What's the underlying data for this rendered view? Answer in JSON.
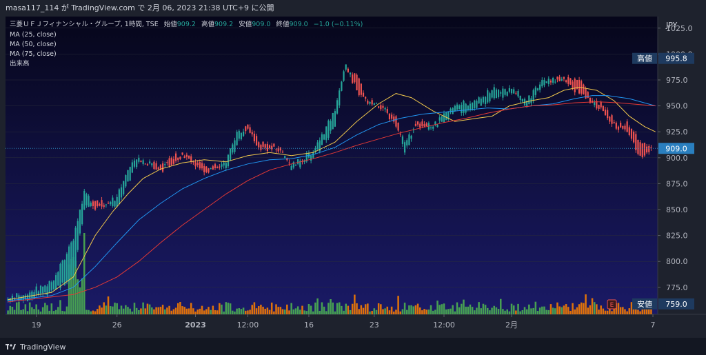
{
  "header": {
    "caption": "masa117_114 が TradingView.com で 2月 06, 2023 21:38 UTC+9 に公開"
  },
  "legend": {
    "symbol": "三菱ＵＦＪフィナンシャル・グループ, 1時間, TSE",
    "open_label": "始値",
    "open_value": "909.2",
    "high_label": "高値",
    "high_value": "909.2",
    "low_label": "安値",
    "low_value": "909.0",
    "close_label": "終値",
    "close_value": "909.0",
    "change": "−1.0 (−0.11%)",
    "indicators": [
      "MA (25, close)",
      "MA (50, close)",
      "MA (75, close)",
      "出来高"
    ]
  },
  "price_axis": {
    "currency": "JPY",
    "ticks": [
      "1025.0",
      "1000.0",
      "975.0",
      "950.0",
      "925.0",
      "900.0",
      "875.0",
      "850.0",
      "825.0",
      "800.0",
      "775.0"
    ],
    "high_tag": {
      "label": "高値",
      "value": "995.8"
    },
    "last_tag": {
      "value": "909.0"
    },
    "low_tag": {
      "label": "安値",
      "value": "759.0"
    }
  },
  "time_axis": {
    "labels": [
      "19",
      "26",
      "2023",
      "12:00",
      "16",
      "23",
      "12:00",
      "2月",
      "7"
    ]
  },
  "event_marker": "E",
  "branding": "TradingView",
  "colors": {
    "up": "#26a69a",
    "down": "#ef5350",
    "ma25": "#f2c94c",
    "ma50": "#2196f3",
    "ma75": "#e53935",
    "vol_up": "#4caf50",
    "vol_down": "#f57c00",
    "bg_top": "#06061a",
    "bg_bottom": "#1a1a66"
  },
  "chart_data": {
    "type": "candlestick",
    "timeframe": "1時間",
    "ylim": [
      759,
      1025
    ],
    "key_points": [
      {
        "i": 0,
        "o": 762,
        "c": 764
      },
      {
        "i": 10,
        "o": 764,
        "c": 770
      },
      {
        "i": 20,
        "o": 772,
        "c": 780
      },
      {
        "i": 30,
        "o": 785,
        "c": 820
      },
      {
        "i": 35,
        "o": 850,
        "c": 868
      },
      {
        "i": 40,
        "o": 858,
        "c": 850
      },
      {
        "i": 50,
        "o": 853,
        "c": 862
      },
      {
        "i": 55,
        "o": 877,
        "c": 888
      },
      {
        "i": 60,
        "o": 896,
        "c": 900
      },
      {
        "i": 70,
        "o": 893,
        "c": 888
      },
      {
        "i": 80,
        "o": 905,
        "c": 903
      },
      {
        "i": 90,
        "o": 892,
        "c": 886
      },
      {
        "i": 100,
        "o": 890,
        "c": 895
      },
      {
        "i": 105,
        "o": 912,
        "c": 925
      },
      {
        "i": 110,
        "o": 932,
        "c": 928
      },
      {
        "i": 115,
        "o": 915,
        "c": 910
      },
      {
        "i": 125,
        "o": 910,
        "c": 907
      },
      {
        "i": 130,
        "o": 888,
        "c": 892
      },
      {
        "i": 140,
        "o": 900,
        "c": 905
      },
      {
        "i": 150,
        "o": 930,
        "c": 945
      },
      {
        "i": 155,
        "o": 985,
        "c": 990
      },
      {
        "i": 160,
        "o": 980,
        "c": 965
      },
      {
        "i": 165,
        "o": 955,
        "c": 952
      },
      {
        "i": 172,
        "o": 950,
        "c": 948
      },
      {
        "i": 178,
        "o": 940,
        "c": 930
      },
      {
        "i": 182,
        "o": 905,
        "c": 915
      },
      {
        "i": 188,
        "o": 935,
        "c": 932
      },
      {
        "i": 195,
        "o": 928,
        "c": 930
      },
      {
        "i": 205,
        "o": 945,
        "c": 950
      },
      {
        "i": 215,
        "o": 948,
        "c": 955
      },
      {
        "i": 222,
        "o": 958,
        "c": 965
      },
      {
        "i": 232,
        "o": 962,
        "c": 966
      },
      {
        "i": 238,
        "o": 950,
        "c": 955
      },
      {
        "i": 246,
        "o": 970,
        "c": 975
      },
      {
        "i": 255,
        "o": 978,
        "c": 976
      },
      {
        "i": 262,
        "o": 975,
        "c": 962
      },
      {
        "i": 268,
        "o": 955,
        "c": 953
      },
      {
        "i": 273,
        "o": 950,
        "c": 945
      },
      {
        "i": 280,
        "o": 930,
        "c": 927
      },
      {
        "i": 284,
        "o": 935,
        "c": 925
      },
      {
        "i": 290,
        "o": 915,
        "c": 902
      },
      {
        "i": 295,
        "o": 910,
        "c": 909
      }
    ],
    "moving_averages": [
      {
        "name": "MA (25, close)",
        "points": [
          [
            0,
            763
          ],
          [
            20,
            770
          ],
          [
            30,
            785
          ],
          [
            35,
            805
          ],
          [
            40,
            825
          ],
          [
            48,
            848
          ],
          [
            55,
            865
          ],
          [
            62,
            880
          ],
          [
            70,
            889
          ],
          [
            80,
            895
          ],
          [
            90,
            898
          ],
          [
            100,
            896
          ],
          [
            110,
            902
          ],
          [
            120,
            905
          ],
          [
            130,
            902
          ],
          [
            140,
            905
          ],
          [
            150,
            915
          ],
          [
            160,
            935
          ],
          [
            170,
            952
          ],
          [
            178,
            962
          ],
          [
            185,
            958
          ],
          [
            195,
            945
          ],
          [
            205,
            935
          ],
          [
            215,
            938
          ],
          [
            222,
            940
          ],
          [
            230,
            950
          ],
          [
            240,
            955
          ],
          [
            248,
            958
          ],
          [
            255,
            965
          ],
          [
            262,
            968
          ],
          [
            270,
            965
          ],
          [
            278,
            955
          ],
          [
            285,
            940
          ],
          [
            292,
            930
          ],
          [
            297,
            925
          ]
        ]
      },
      {
        "name": "MA (50, close)",
        "points": [
          [
            0,
            762
          ],
          [
            20,
            767
          ],
          [
            30,
            775
          ],
          [
            40,
            795
          ],
          [
            50,
            818
          ],
          [
            60,
            840
          ],
          [
            70,
            856
          ],
          [
            80,
            870
          ],
          [
            90,
            880
          ],
          [
            100,
            888
          ],
          [
            110,
            894
          ],
          [
            120,
            898
          ],
          [
            130,
            899
          ],
          [
            140,
            903
          ],
          [
            150,
            910
          ],
          [
            160,
            922
          ],
          [
            170,
            932
          ],
          [
            180,
            938
          ],
          [
            190,
            942
          ],
          [
            200,
            944
          ],
          [
            210,
            946
          ],
          [
            220,
            948
          ],
          [
            230,
            947
          ],
          [
            240,
            950
          ],
          [
            250,
            952
          ],
          [
            260,
            957
          ],
          [
            268,
            960
          ],
          [
            275,
            960
          ],
          [
            285,
            957
          ],
          [
            297,
            950
          ]
        ]
      },
      {
        "name": "MA (75, close)",
        "points": [
          [
            0,
            761
          ],
          [
            30,
            768
          ],
          [
            40,
            775
          ],
          [
            50,
            785
          ],
          [
            60,
            800
          ],
          [
            70,
            818
          ],
          [
            80,
            835
          ],
          [
            90,
            850
          ],
          [
            100,
            865
          ],
          [
            110,
            878
          ],
          [
            120,
            888
          ],
          [
            130,
            894
          ],
          [
            140,
            899
          ],
          [
            150,
            905
          ],
          [
            160,
            912
          ],
          [
            170,
            918
          ],
          [
            180,
            924
          ],
          [
            190,
            929
          ],
          [
            200,
            934
          ],
          [
            210,
            938
          ],
          [
            220,
            943
          ],
          [
            230,
            947
          ],
          [
            240,
            950
          ],
          [
            250,
            951
          ],
          [
            260,
            953
          ],
          [
            270,
            954
          ],
          [
            280,
            953
          ],
          [
            297,
            950
          ]
        ]
      }
    ]
  }
}
